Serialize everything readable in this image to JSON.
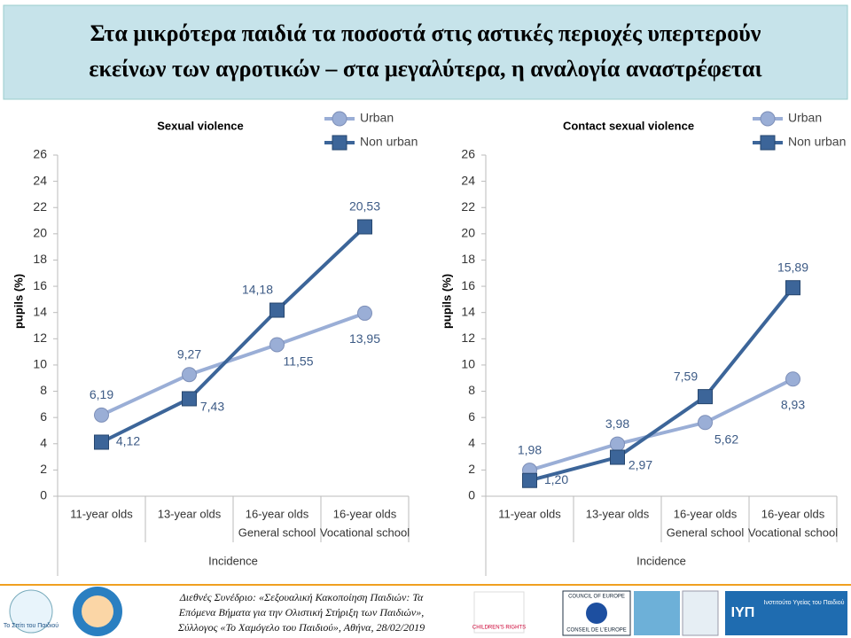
{
  "title": [
    "Στα μικρότερα παιδιά τα ποσοστά στις αστικές περιοχές υπερτερούν",
    "εκείνων των αγροτικών – στα μεγαλύτερα, η αναλογία αναστρέφεται"
  ],
  "chart_data": [
    {
      "type": "line",
      "title": "Sexual violence",
      "xlabel": "Incidence",
      "ylabel": "pupils (%)",
      "categories": [
        [
          "11-year olds"
        ],
        [
          "13-year olds"
        ],
        [
          "16-year olds",
          "General school"
        ],
        [
          "16-year olds",
          "Vocational school"
        ]
      ],
      "series": [
        {
          "name": "Urban",
          "color": "#9aaed6",
          "marker": "circle",
          "values": [
            6.19,
            9.27,
            11.55,
            13.95
          ],
          "value_labels": [
            "6,19",
            "9,27",
            "11,55",
            "13,95"
          ]
        },
        {
          "name": "Non urban",
          "color": "#3c6599",
          "marker": "square",
          "values": [
            4.12,
            7.43,
            14.18,
            20.53
          ],
          "value_labels": [
            "4,12",
            "7,43",
            "14,18",
            "20,53"
          ]
        }
      ],
      "ylim": [
        0,
        26
      ],
      "yticks": [
        0,
        2,
        4,
        6,
        8,
        10,
        12,
        14,
        16,
        18,
        20,
        22,
        24,
        26
      ],
      "grid": false,
      "legend": "upper right"
    },
    {
      "type": "line",
      "title": "Contact sexual violence",
      "xlabel": "Incidence",
      "ylabel": "pupils (%)",
      "categories": [
        [
          "11-year olds"
        ],
        [
          "13-year olds"
        ],
        [
          "16-year olds",
          "General school"
        ],
        [
          "16-year olds",
          "Vocational school"
        ]
      ],
      "series": [
        {
          "name": "Urban",
          "color": "#9aaed6",
          "marker": "circle",
          "values": [
            1.98,
            3.98,
            5.62,
            8.93
          ],
          "value_labels": [
            "1,98",
            "3,98",
            "5,62",
            "8,93"
          ]
        },
        {
          "name": "Non urban",
          "color": "#3c6599",
          "marker": "square",
          "values": [
            1.2,
            2.97,
            7.59,
            15.89
          ],
          "value_labels": [
            "1,20",
            "2,97",
            "7,59",
            "15,89"
          ]
        }
      ],
      "ylim": [
        0,
        26
      ],
      "yticks": [
        0,
        2,
        4,
        6,
        8,
        10,
        12,
        14,
        16,
        18,
        20,
        22,
        24,
        26
      ],
      "grid": false,
      "legend": "upper right"
    }
  ],
  "footer": {
    "lines": [
      "Διεθνές Συνέδριο: «Σεξουαλική Κακοποίηση Παιδιών: Τα",
      "Επόμενα Βήματα για την Ολιστική Στήριξη των Παιδιών»,",
      "Σύλλογος «Το Χαμόγελο του Παιδιού», Αθήνα, 28/02/2019"
    ],
    "logos": [
      "Το Σπίτι του Παιδιού",
      "CHILDREN'S RIGHTS",
      "COUNCIL OF EUROPE",
      "CONSEIL DE L'EUROPE",
      "ΙΥΠ",
      "Ινστιτούτο Υγείας του Παιδιού"
    ]
  }
}
